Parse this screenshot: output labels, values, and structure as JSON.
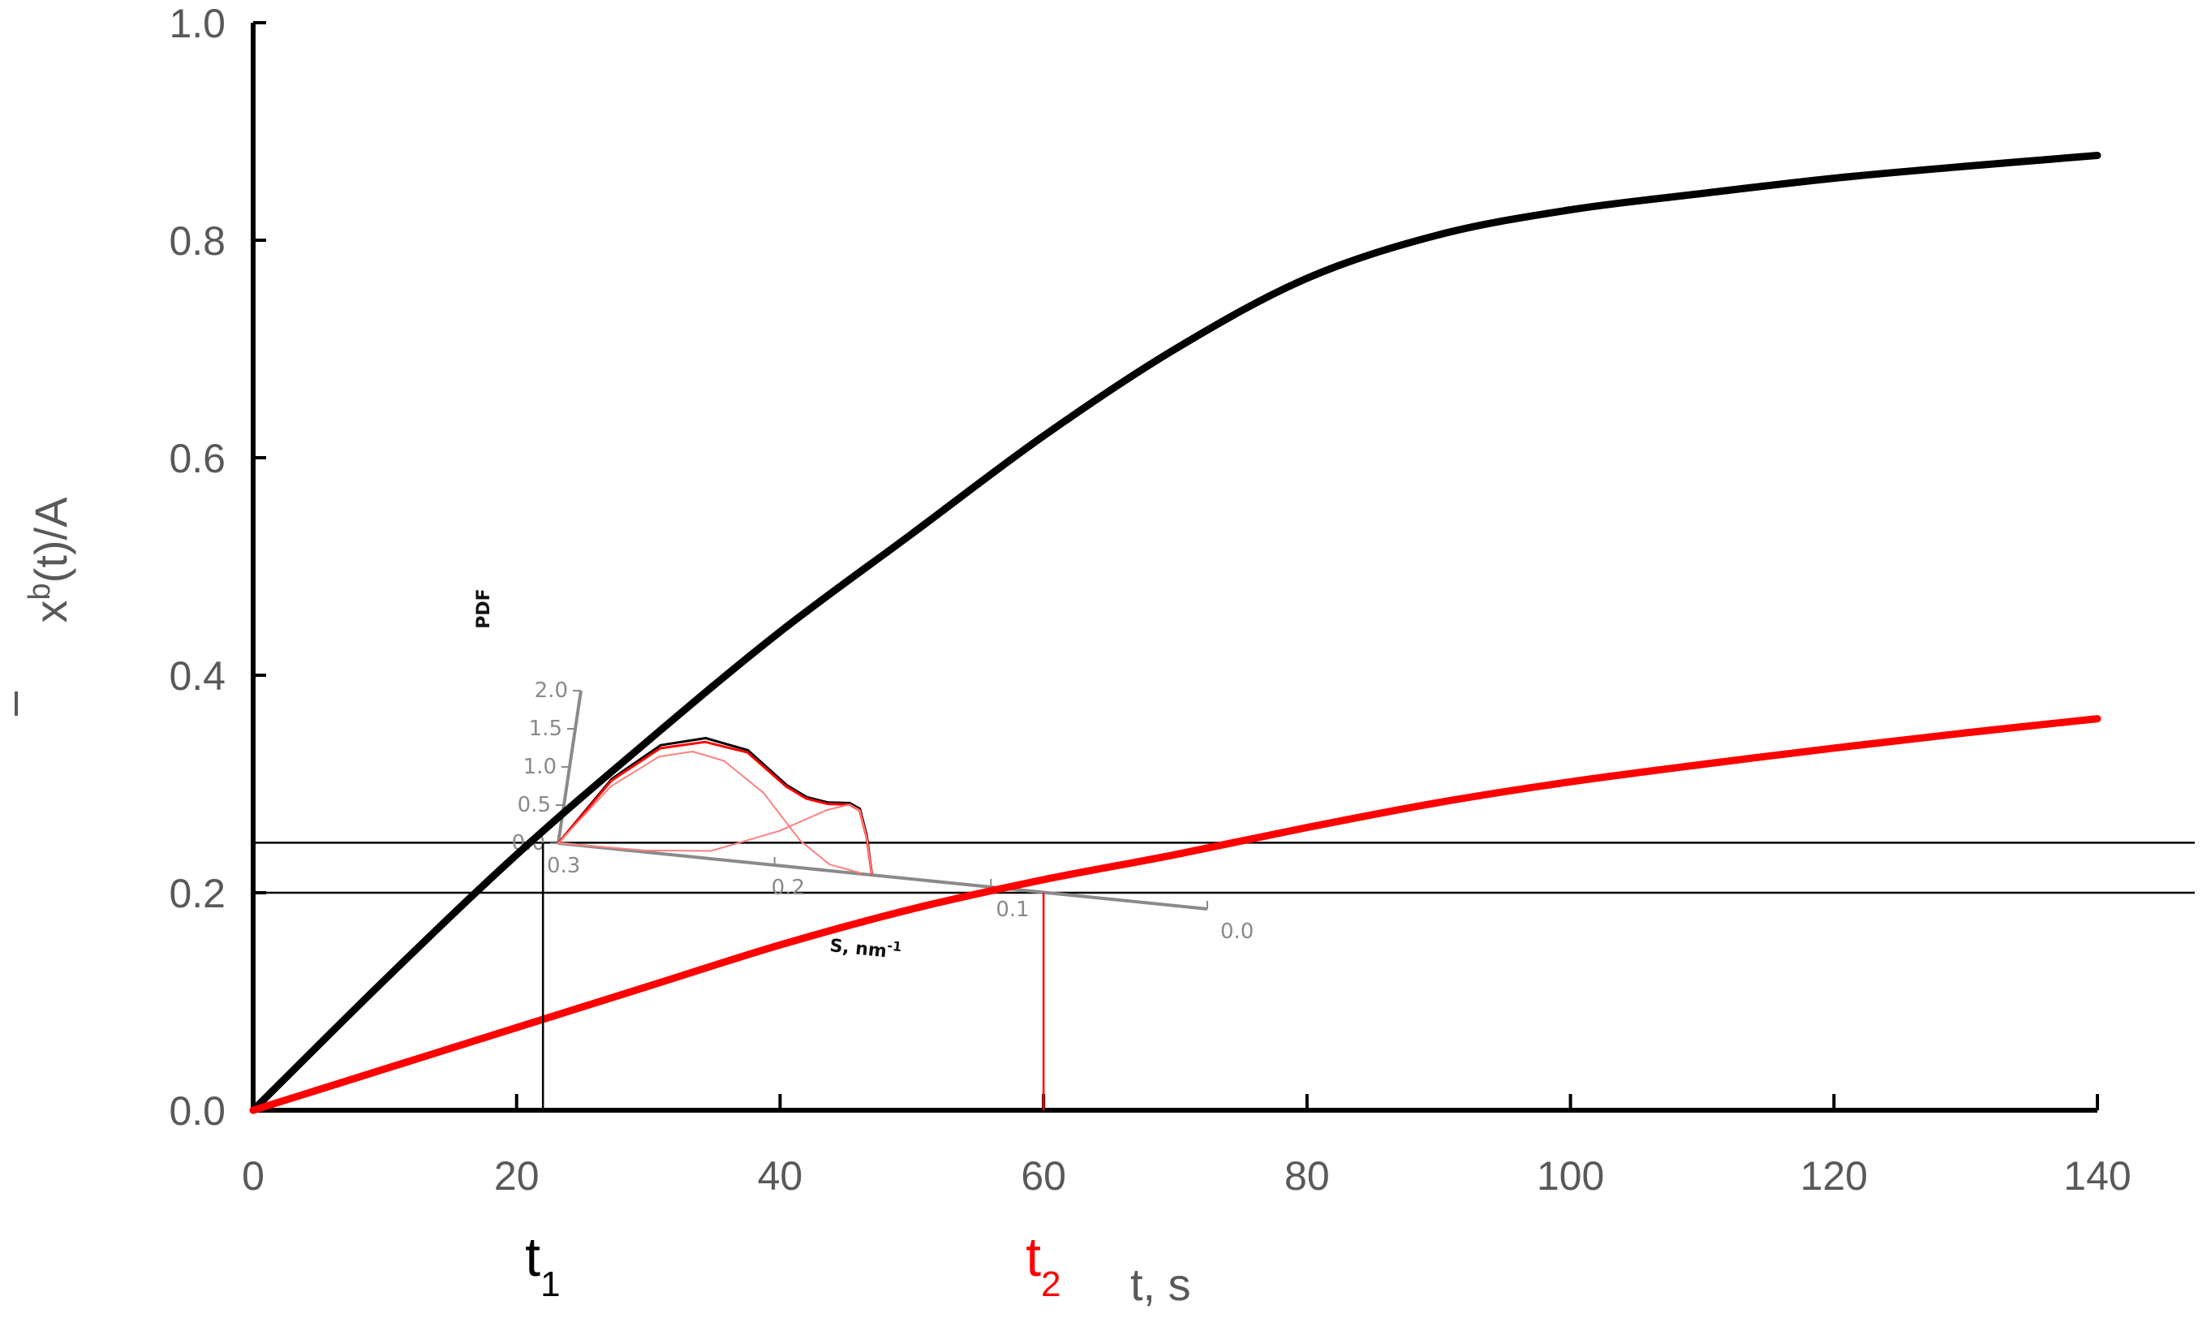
{
  "chart_data": {
    "type": "line",
    "xlim": [
      0,
      140
    ],
    "ylim": [
      0,
      1.0
    ],
    "x_ticks": [
      "0",
      "20",
      "40",
      "60",
      "80",
      "100",
      "120",
      "140"
    ],
    "y_ticks": [
      "0.0",
      "0.2",
      "0.4",
      "0.6",
      "0.8",
      "1.0"
    ],
    "ylabel_main": "x",
    "ylabel_sup": "b",
    "ylabel_rest": "(t)/A",
    "xlabel": "t, s",
    "grid": false,
    "series": [
      {
        "color": "#000000",
        "points": [
          [
            0,
            0
          ],
          [
            10,
            0.12
          ],
          [
            20,
            0.235
          ],
          [
            30,
            0.34
          ],
          [
            40,
            0.44
          ],
          [
            50,
            0.53
          ],
          [
            60,
            0.62
          ],
          [
            70,
            0.7
          ],
          [
            80,
            0.765
          ],
          [
            90,
            0.805
          ],
          [
            100,
            0.828
          ],
          [
            110,
            0.843
          ],
          [
            120,
            0.857
          ],
          [
            130,
            0.868
          ],
          [
            140,
            0.878
          ]
        ]
      },
      {
        "color": "#ff0000",
        "points": [
          [
            0,
            0
          ],
          [
            10,
            0.038
          ],
          [
            20,
            0.076
          ],
          [
            30,
            0.114
          ],
          [
            40,
            0.152
          ],
          [
            50,
            0.185
          ],
          [
            60,
            0.212
          ],
          [
            70,
            0.235
          ],
          [
            80,
            0.26
          ],
          [
            90,
            0.283
          ],
          [
            100,
            0.302
          ],
          [
            110,
            0.318
          ],
          [
            120,
            0.333
          ],
          [
            130,
            0.347
          ],
          [
            140,
            0.36
          ]
        ]
      }
    ],
    "hlines": [
      0.246,
      0.2
    ],
    "vmarkers": [
      {
        "x": 22,
        "label": "t",
        "sub": "1",
        "color": "#000000"
      },
      {
        "x": 60,
        "label": "t",
        "sub": "2",
        "color": "#ff0000"
      }
    ],
    "inset": {
      "type": "line",
      "ylabel": "PDF",
      "xlabel": "S, nm",
      "xlabel_sup": "-1",
      "y_ticks": [
        "0.0",
        "0.5",
        "1.0",
        "1.5",
        "2.0"
      ],
      "x_ticks": [
        "0.3",
        "0.2",
        "0.1",
        "0.0"
      ],
      "curves": [
        {
          "name": "total-black",
          "color": "#000000",
          "width": 3,
          "points": [
            [
              0.3,
              0
            ],
            [
              0.28,
              0.9
            ],
            [
              0.26,
              1.4
            ],
            [
              0.24,
              1.55
            ],
            [
              0.22,
              1.45
            ],
            [
              0.2,
              1.05
            ],
            [
              0.19,
              0.92
            ],
            [
              0.18,
              0.88
            ],
            [
              0.17,
              0.9
            ],
            [
              0.165,
              0.84
            ],
            [
              0.16,
              0.5
            ],
            [
              0.155,
              0
            ]
          ]
        },
        {
          "name": "total-red",
          "color": "#ff0000",
          "width": 3,
          "points": [
            [
              0.3,
              0
            ],
            [
              0.28,
              0.88
            ],
            [
              0.26,
              1.36
            ],
            [
              0.24,
              1.5
            ],
            [
              0.22,
              1.42
            ],
            [
              0.2,
              1.03
            ],
            [
              0.19,
              0.9
            ],
            [
              0.18,
              0.86
            ],
            [
              0.17,
              0.88
            ],
            [
              0.165,
              0.82
            ],
            [
              0.16,
              0.48
            ],
            [
              0.155,
              0
            ]
          ]
        },
        {
          "name": "peak1",
          "color": "#ff8080",
          "width": 2,
          "points": [
            [
              0.3,
              0
            ],
            [
              0.28,
              0.8
            ],
            [
              0.26,
              1.25
            ],
            [
              0.245,
              1.36
            ],
            [
              0.23,
              1.28
            ],
            [
              0.21,
              0.92
            ],
            [
              0.19,
              0.35
            ],
            [
              0.175,
              0.08
            ],
            [
              0.16,
              0.01
            ]
          ]
        },
        {
          "name": "peak2",
          "color": "#ff8080",
          "width": 2,
          "points": [
            [
              0.3,
              0
            ],
            [
              0.26,
              0.02
            ],
            [
              0.23,
              0.1
            ],
            [
              0.2,
              0.45
            ],
            [
              0.18,
              0.78
            ],
            [
              0.17,
              0.88
            ],
            [
              0.165,
              0.82
            ],
            [
              0.16,
              0.48
            ],
            [
              0.155,
              0
            ]
          ]
        }
      ]
    }
  }
}
